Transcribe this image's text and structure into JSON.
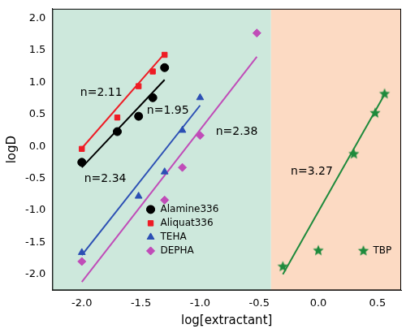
{
  "chart_data": {
    "type": "scatter",
    "x_label": "log[extractant]",
    "y_label": "logD",
    "xlim": [
      -2.25,
      0.7
    ],
    "ylim": [
      -2.25,
      2.15
    ],
    "xticks": [
      {
        "value": -2,
        "label": "-2.0"
      },
      {
        "value": -1.5,
        "label": "-1.5"
      },
      {
        "value": -1,
        "label": "-1.0"
      },
      {
        "value": -0.5,
        "label": "-0.5"
      },
      {
        "value": 0,
        "label": "0.0"
      },
      {
        "value": 0.5,
        "label": "0.5"
      }
    ],
    "yticks": [
      {
        "value": -2,
        "label": "-2.0"
      },
      {
        "value": -1.5,
        "label": "-1.5"
      },
      {
        "value": -1,
        "label": "-1.0"
      },
      {
        "value": -0.5,
        "label": "-0.5"
      },
      {
        "value": 0,
        "label": "0.0"
      },
      {
        "value": 0.5,
        "label": "0.5"
      },
      {
        "value": 1,
        "label": "1.0"
      },
      {
        "value": 1.5,
        "label": "1.5"
      },
      {
        "value": 2,
        "label": "2.0"
      }
    ],
    "grid": false,
    "shaded_regions": [
      {
        "x": [
          -2.25,
          -0.4
        ],
        "color": "#cde8dc"
      },
      {
        "x": [
          -0.4,
          0.7
        ],
        "color": "#fcdac3"
      }
    ],
    "series": [
      {
        "name": "Alamine336",
        "color": "#000000",
        "marker": "circle",
        "x": [
          -2.0,
          -1.7,
          -1.52,
          -1.4,
          -1.3
        ],
        "values": [
          -0.25,
          0.23,
          0.47,
          0.76,
          1.23
        ],
        "fit": {
          "x": [
            -2.0,
            -1.3
          ],
          "values": [
            -0.33,
            1.04
          ]
        },
        "annotation": "n=1.95"
      },
      {
        "name": "Aliquat336",
        "color": "#ee1c25",
        "marker": "square",
        "x": [
          -2.0,
          -1.7,
          -1.52,
          -1.4,
          -1.3
        ],
        "values": [
          -0.04,
          0.45,
          0.94,
          1.17,
          1.43
        ],
        "fit": {
          "x": [
            -2.0,
            -1.3
          ],
          "values": [
            -0.03,
            1.45
          ]
        },
        "annotation": "n=2.11"
      },
      {
        "name": "TEHA",
        "color": "#2c4fb4",
        "marker": "triangle",
        "x": [
          -2.0,
          -1.52,
          -1.3,
          -1.15,
          -1.0
        ],
        "values": [
          -1.66,
          -0.78,
          -0.4,
          0.25,
          0.76
        ],
        "fit": {
          "x": [
            -2.0,
            -1.0
          ],
          "values": [
            -1.7,
            0.64
          ]
        },
        "annotation": "n=2.34"
      },
      {
        "name": "DEPHA",
        "color": "#c04cb8",
        "marker": "diamond",
        "x": [
          -2.0,
          -1.3,
          -1.15,
          -1.0,
          -0.52
        ],
        "values": [
          -1.8,
          -0.84,
          -0.33,
          0.17,
          1.77
        ],
        "fit": {
          "x": [
            -2.0,
            -0.52
          ],
          "values": [
            -2.12,
            1.4
          ]
        },
        "annotation": "n=2.38"
      },
      {
        "name": "TBP",
        "color": "#1e8a3c",
        "marker": "star",
        "x": [
          -0.3,
          0.0,
          0.3,
          0.48,
          0.56
        ],
        "values": [
          -1.88,
          -1.63,
          -0.12,
          0.52,
          0.82
        ],
        "fit": {
          "x": [
            -0.3,
            0.56
          ],
          "values": [
            -2.0,
            0.81
          ]
        },
        "annotation": "n=3.27"
      }
    ]
  }
}
